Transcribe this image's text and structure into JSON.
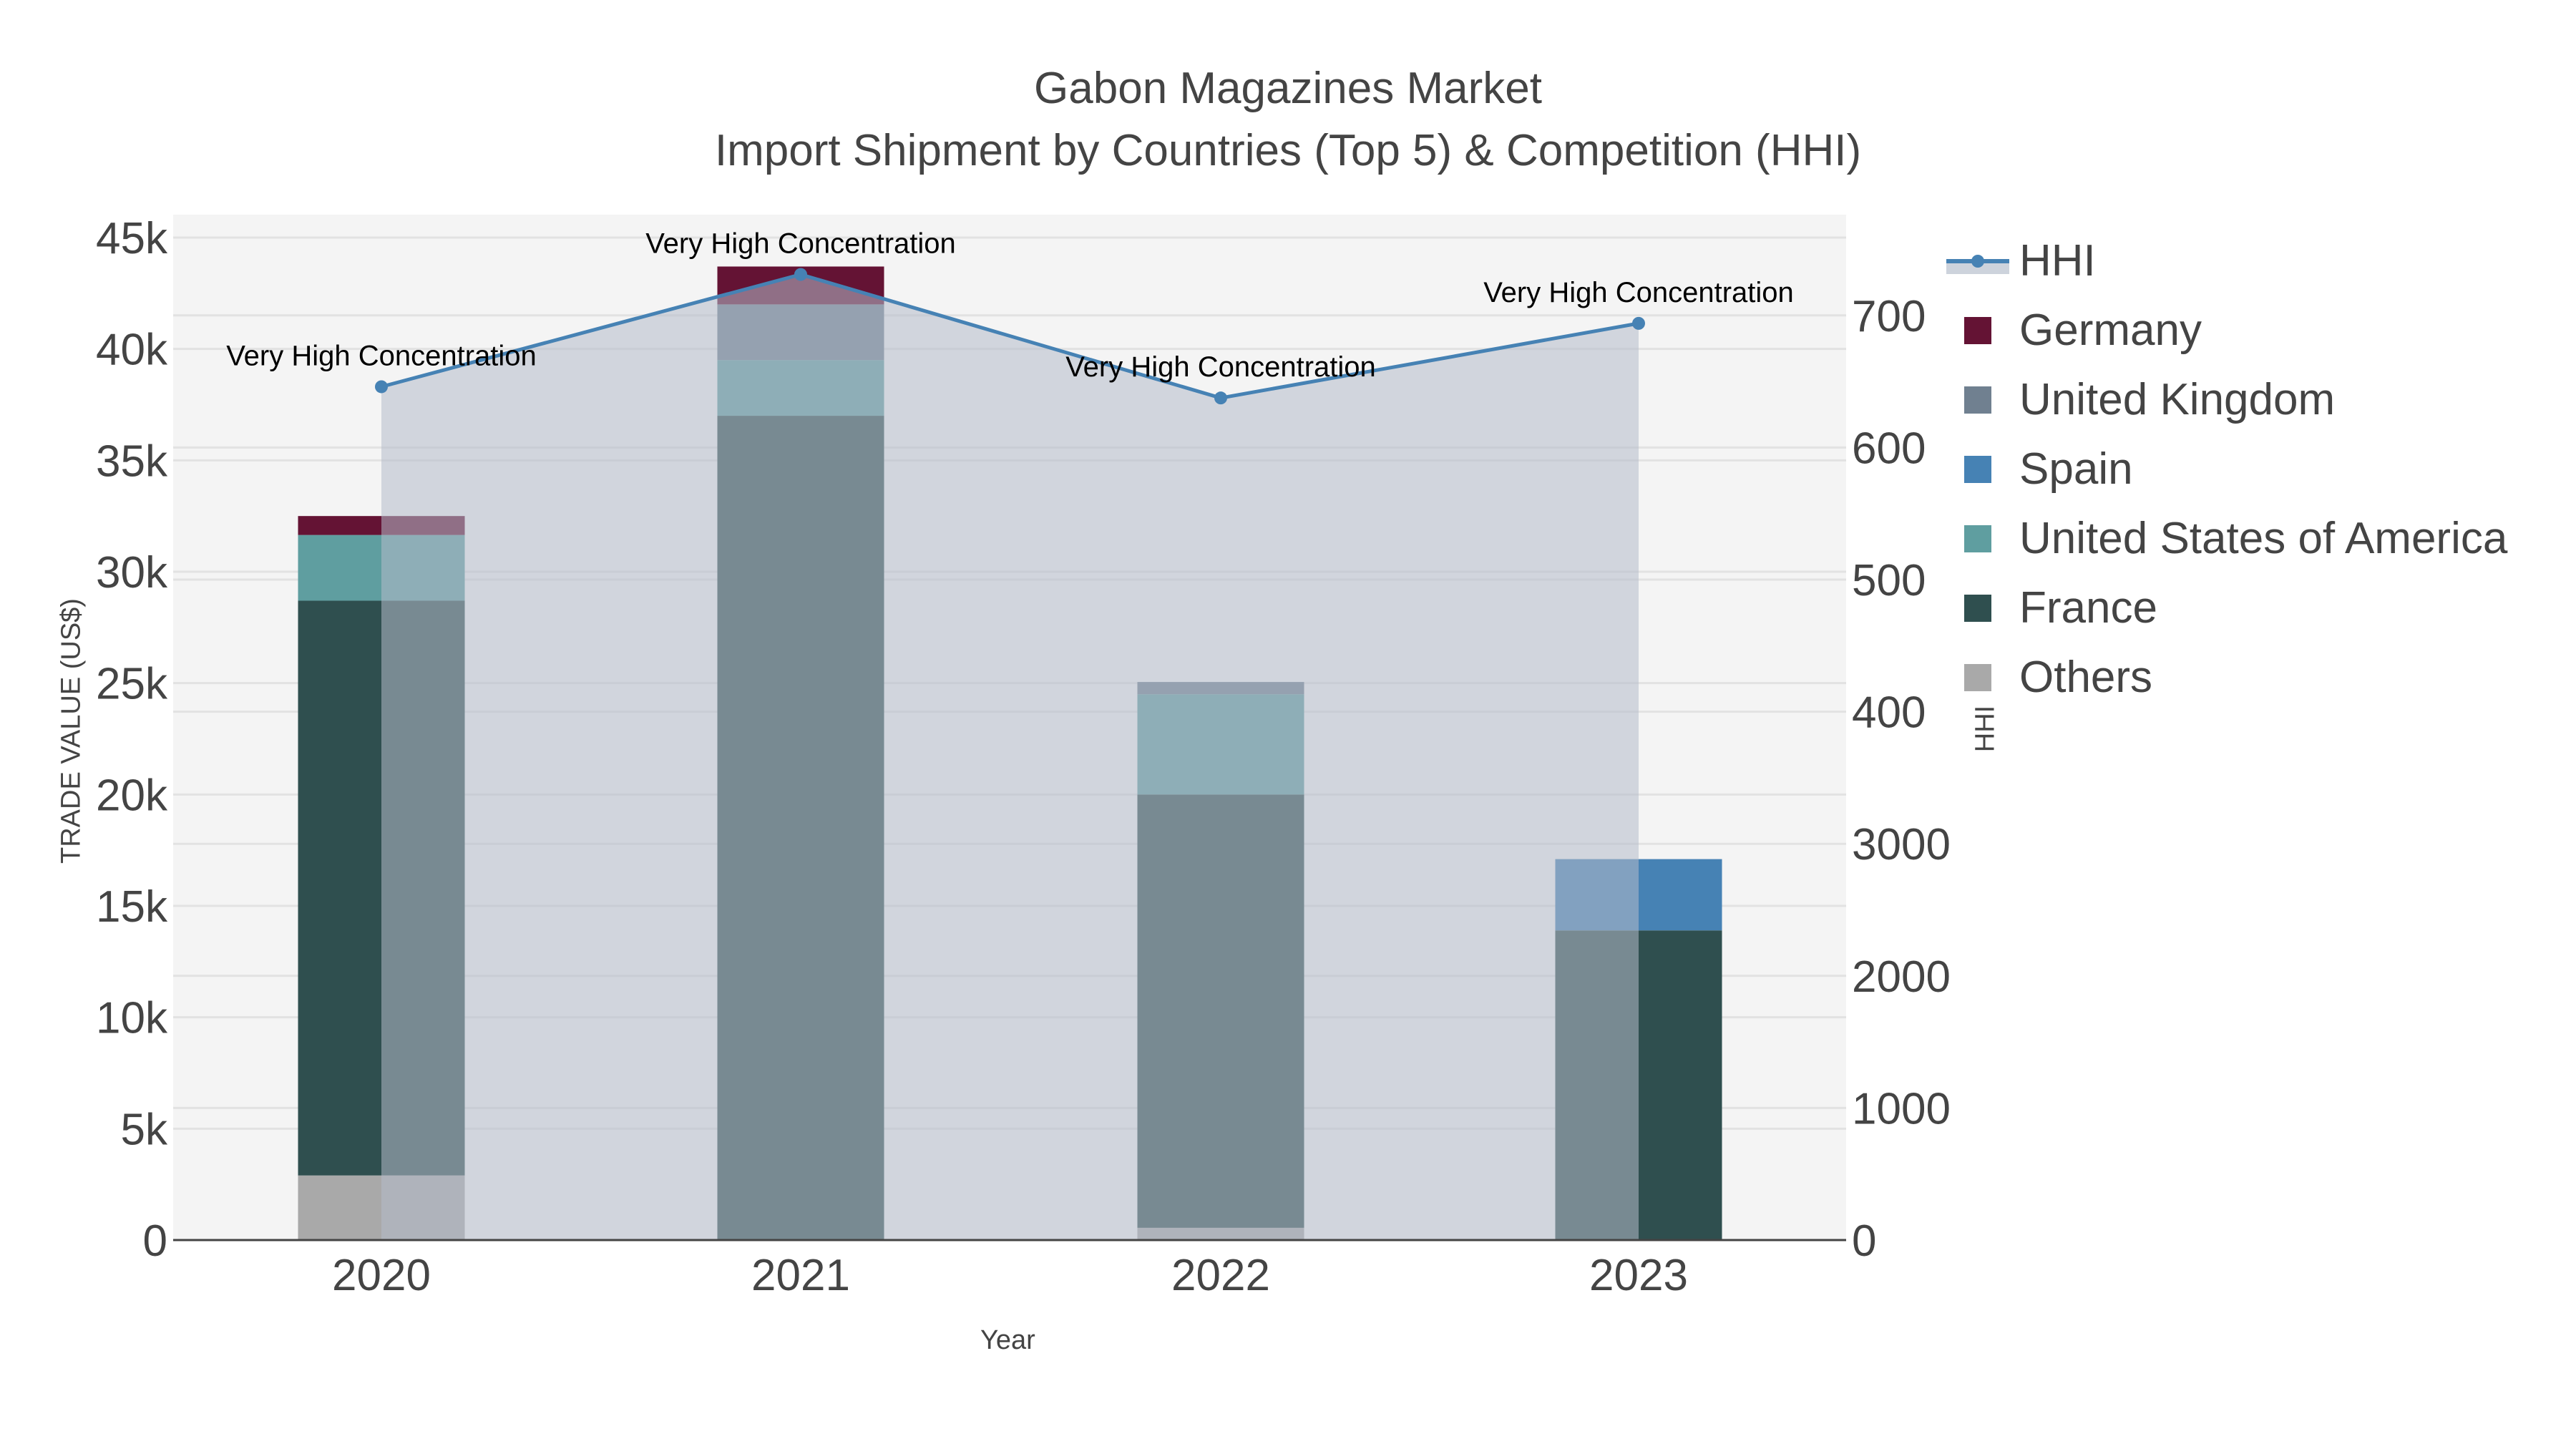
{
  "title": {
    "line1": "Gabon Magazines Market",
    "line2": "Import Shipment by Countries (Top 5) & Competition (HHI)"
  },
  "axes": {
    "x_title": "Year",
    "y_left_title": "TRADE VALUE (US$)",
    "y_right_title": "HHI",
    "y_left_ticks": [
      "0",
      "5k",
      "10k",
      "15k",
      "20k",
      "25k",
      "30k",
      "35k",
      "40k",
      "45k"
    ],
    "y_right_ticks_lower": [
      "0",
      "1000",
      "2000",
      "3000"
    ],
    "y_right_ticks_upper_visible": [
      "400",
      "500",
      "600",
      "700"
    ],
    "x_ticks": [
      "2020",
      "2021",
      "2022",
      "2023"
    ]
  },
  "legend": [
    {
      "name": "HHI",
      "type": "line",
      "color": "#4682B4"
    },
    {
      "name": "Germany",
      "type": "bar",
      "color": "#641334"
    },
    {
      "name": "United Kingdom",
      "type": "bar",
      "color": "#708090"
    },
    {
      "name": "Spain",
      "type": "bar",
      "color": "#4682B4"
    },
    {
      "name": "United States of America",
      "type": "bar",
      "color": "#5F9EA0"
    },
    {
      "name": "France",
      "type": "bar",
      "color": "#2F4F4F"
    },
    {
      "name": "Others",
      "type": "bar",
      "color": "#A9A9A9"
    }
  ],
  "annotations": [
    {
      "year": "2020",
      "text": "Very High Concentration"
    },
    {
      "year": "2021",
      "text": "Very High Concentration"
    },
    {
      "year": "2022",
      "text": "Very High Concentration"
    },
    {
      "year": "2023",
      "text": "Very High Concentration"
    }
  ],
  "chart_data": {
    "type": "bar",
    "subtype": "stacked bar with HHI line/area on secondary axis",
    "title": "Gabon Magazines Market - Import Shipment by Countries (Top 5) & Competition (HHI)",
    "xlabel": "Year",
    "ylabel": "TRADE VALUE (US$)",
    "y2label": "HHI",
    "categories": [
      "2020",
      "2021",
      "2022",
      "2023"
    ],
    "ylim": [
      0,
      46000
    ],
    "y2lim": [
      0,
      7800
    ],
    "grid": true,
    "legend_position": "right",
    "series": [
      {
        "name": "Others",
        "color": "#A9A9A9",
        "values": [
          2900,
          0,
          550,
          0
        ]
      },
      {
        "name": "France",
        "color": "#2F4F4F",
        "values": [
          25800,
          37000,
          19450,
          13900
        ]
      },
      {
        "name": "United States of America",
        "color": "#5F9EA0",
        "values": [
          2950,
          2500,
          4500,
          0
        ]
      },
      {
        "name": "Spain",
        "color": "#4682B4",
        "values": [
          0,
          0,
          0,
          3200
        ]
      },
      {
        "name": "United Kingdom",
        "color": "#708090",
        "values": [
          0,
          2500,
          550,
          0
        ]
      },
      {
        "name": "Germany",
        "color": "#641334",
        "values": [
          850,
          1700,
          0,
          0
        ]
      },
      {
        "name": "HHI",
        "color": "#4682B4",
        "axis": "y2",
        "type": "line+area",
        "values": [
          6460,
          7310,
          6375,
          6940
        ]
      }
    ],
    "annotations": [
      "Very High Concentration",
      "Very High Concentration",
      "Very High Concentration",
      "Very High Concentration"
    ]
  }
}
